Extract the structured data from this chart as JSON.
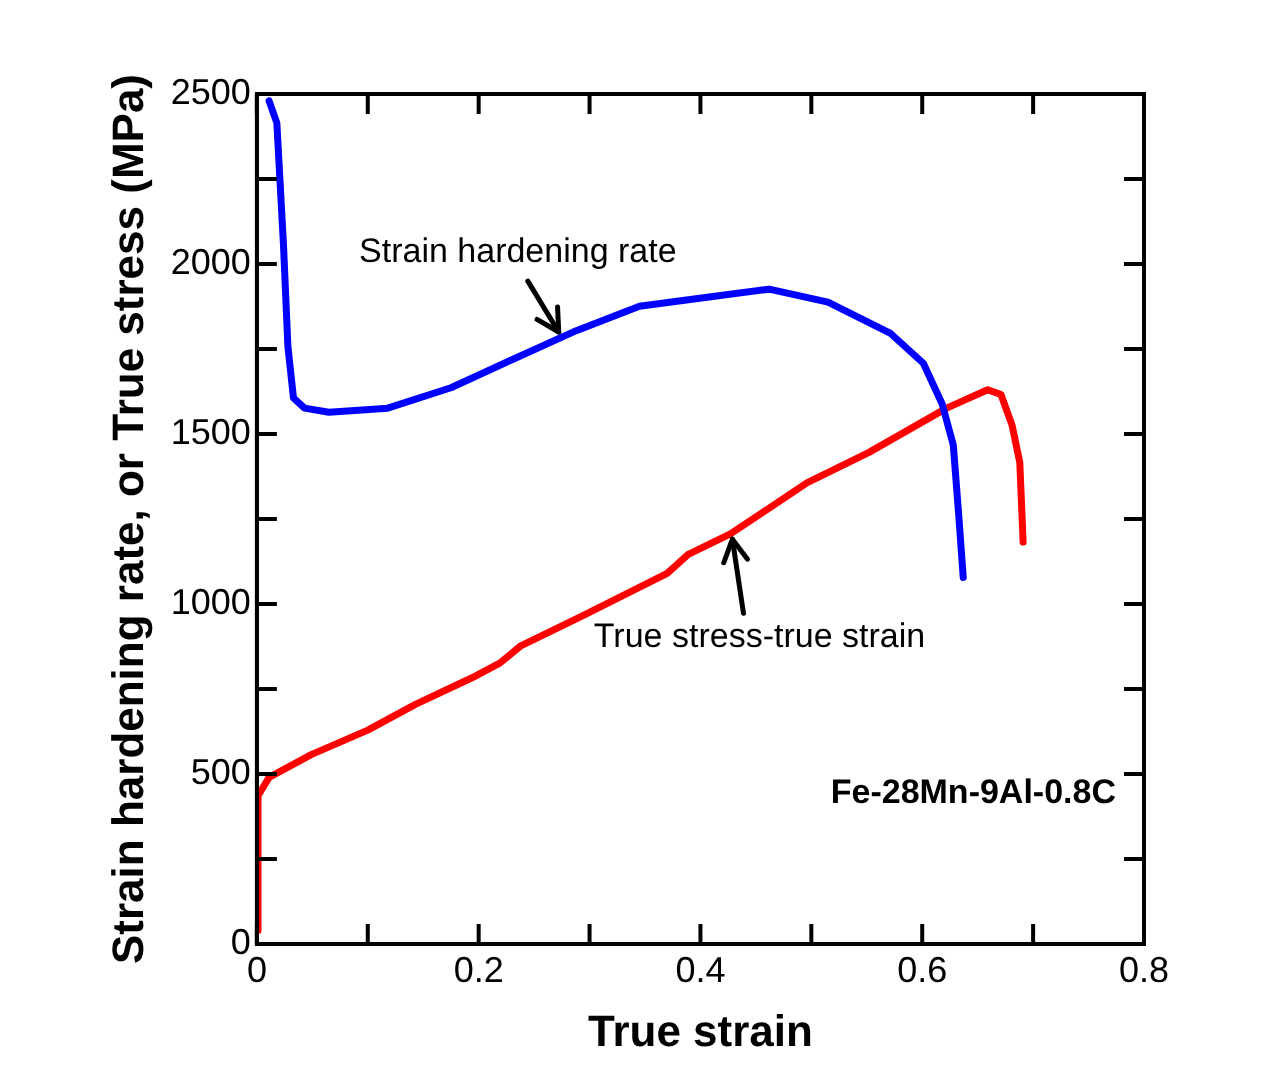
{
  "chart_data": {
    "type": "line",
    "xlabel": "True strain",
    "ylabel": "Strain hardening rate, or True stress (MPa)",
    "xlim": [
      0,
      0.8
    ],
    "ylim": [
      0,
      2500
    ],
    "xticks": [
      0,
      {
        "value": 0.1,
        "label": null
      },
      0.2,
      {
        "value": 0.3,
        "label": null
      },
      0.4,
      {
        "value": 0.5,
        "label": null
      },
      0.6,
      {
        "value": 0.7,
        "label": null
      },
      0.8
    ],
    "yticks": [
      0,
      {
        "value": 250,
        "label": null
      },
      500,
      {
        "value": 750,
        "label": null
      },
      1000,
      {
        "value": 1250,
        "label": null
      },
      1500,
      {
        "value": 1750,
        "label": null
      },
      2000,
      {
        "value": 2250,
        "label": null
      },
      2500
    ],
    "grid": false,
    "legend": false,
    "marker": "none",
    "line_style": "solid",
    "series": [
      {
        "color": "#0000ff",
        "x": [
          0.011,
          0.018,
          0.024,
          0.028,
          0.033,
          0.043,
          0.065,
          0.118,
          0.175,
          0.231,
          0.288,
          0.345,
          0.401,
          0.462,
          0.515,
          0.571,
          0.601,
          0.618,
          0.628,
          0.633,
          0.637
        ],
        "values": [
          2480,
          2415,
          2055,
          1756,
          1606,
          1576,
          1564,
          1576,
          1636,
          1720,
          1804,
          1876,
          1900,
          1926,
          1888,
          1797,
          1708,
          1588,
          1468,
          1258,
          1078
        ]
      },
      {
        "color": "#ff0000",
        "x": [
          0,
          0.001,
          0.011,
          0.049,
          0.1,
          0.143,
          0.194,
          0.219,
          0.238,
          0.294,
          0.37,
          0.389,
          0.427,
          0.496,
          0.552,
          0.622,
          0.659,
          0.671,
          0.681,
          0.688,
          0.691
        ],
        "values": [
          40,
          436,
          490,
          557,
          629,
          705,
          783,
          826,
          877,
          966,
          1090,
          1146,
          1206,
          1356,
          1446,
          1576,
          1630,
          1616,
          1526,
          1416,
          1182
        ]
      }
    ],
    "annotations": [
      {
        "text": "Strain hardening rate",
        "x": 0.275,
        "y": 1785
      },
      {
        "text": "True stress-true strain",
        "x": 0.428,
        "y": 1208
      },
      "Fe-28Mn-9Al-0.8C"
    ]
  }
}
